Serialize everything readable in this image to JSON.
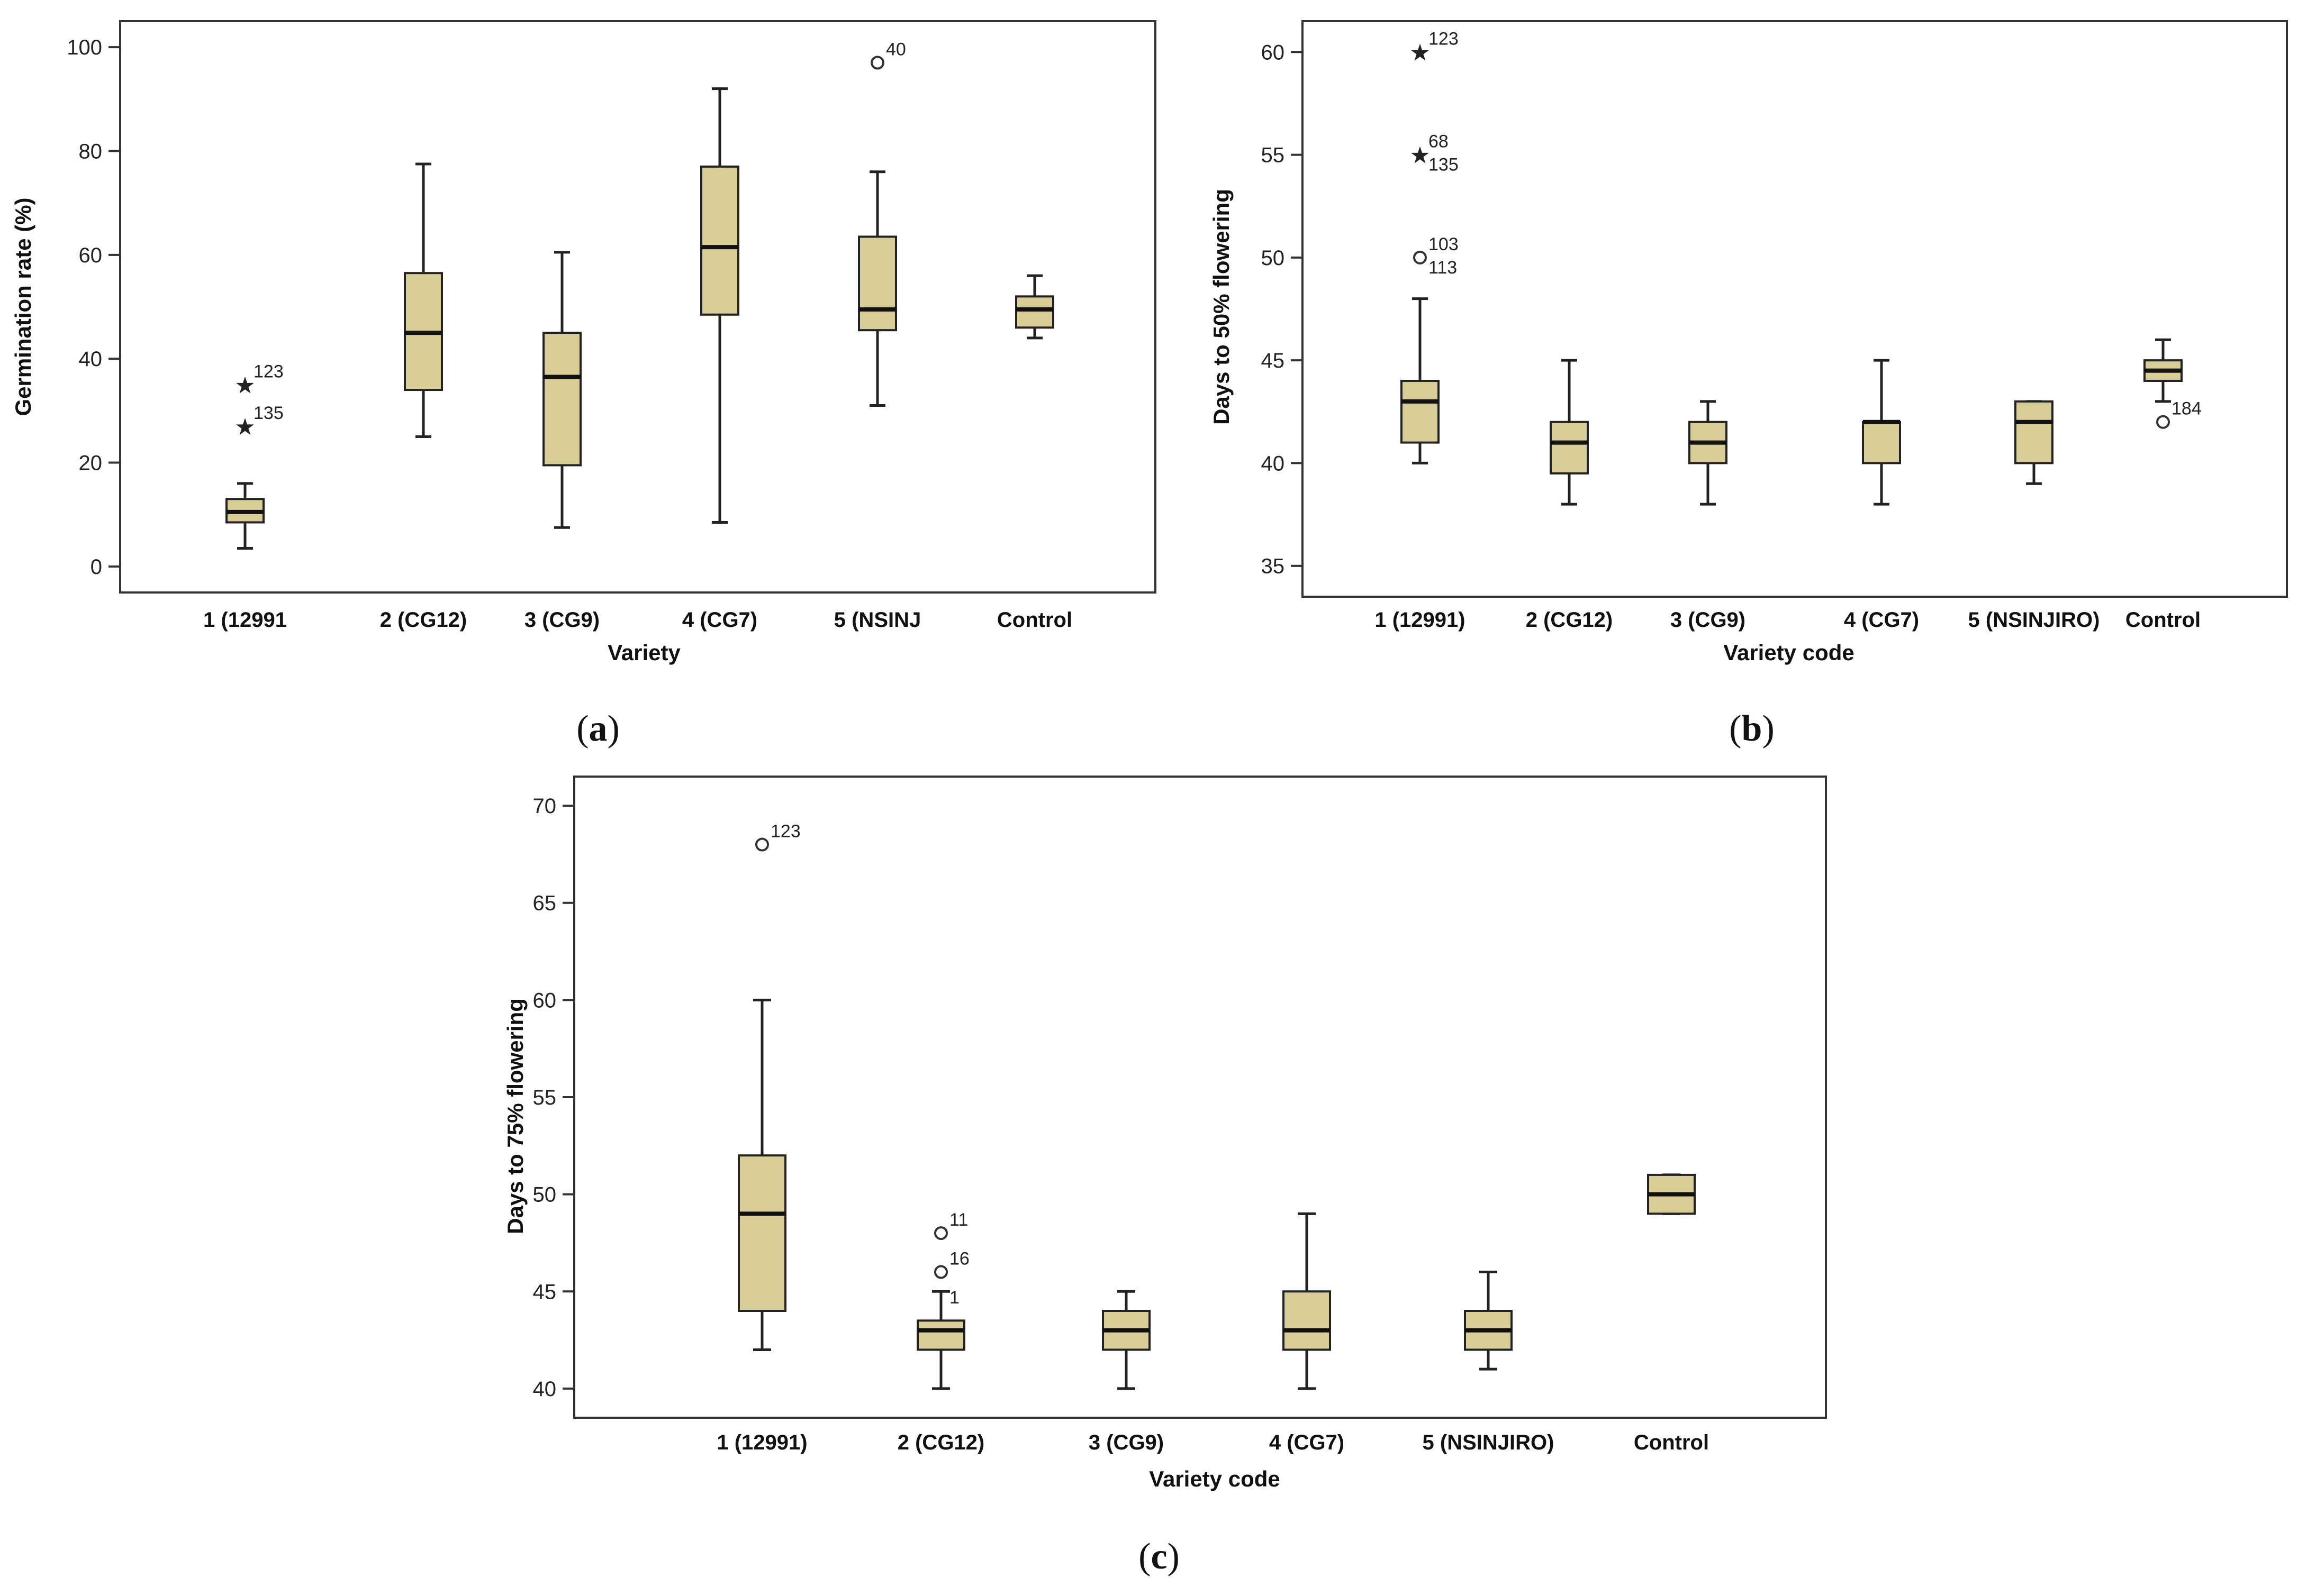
{
  "colors": {
    "box_fill": "#d8cd96",
    "frame": "#333333"
  },
  "chart_data": [
    {
      "panel": "a",
      "type": "boxplot",
      "xlabel": "Variety",
      "ylabel": "Germination rate (%)",
      "ylim": [
        -5,
        105
      ],
      "yticks": [
        0,
        20,
        40,
        60,
        80,
        100
      ],
      "categories": [
        "1 (12991",
        "2 (CG12)",
        "3 (CG9)",
        "4 (CG7)",
        "5 (NSINJ",
        "Control"
      ],
      "boxes": [
        {
          "min": 3.5,
          "q1": 8.5,
          "median": 10.5,
          "q3": 13,
          "max": 16
        },
        {
          "min": 25,
          "q1": 34,
          "median": 45,
          "q3": 56.5,
          "max": 77.5
        },
        {
          "min": 7.5,
          "q1": 19.5,
          "median": 36.5,
          "q3": 45,
          "max": 60.5
        },
        {
          "min": 8.5,
          "q1": 48.5,
          "median": 61.5,
          "q3": 77,
          "max": 92
        },
        {
          "min": 31,
          "q1": 45.5,
          "median": 49.5,
          "q3": 63.5,
          "max": 76
        },
        {
          "min": 44,
          "q1": 46,
          "median": 49.5,
          "q3": 52,
          "max": 56
        }
      ],
      "outliers": [
        {
          "cat": 0,
          "value": 35,
          "marker": "star",
          "label": "123"
        },
        {
          "cat": 0,
          "value": 27,
          "marker": "star",
          "label": "135"
        },
        {
          "cat": 4,
          "value": 97,
          "marker": "circle",
          "label": "40"
        }
      ]
    },
    {
      "panel": "b",
      "type": "boxplot",
      "xlabel": "Variety code",
      "ylabel": "Days to 50% flowering",
      "ylim": [
        33.5,
        61.5
      ],
      "yticks": [
        35,
        40,
        45,
        50,
        55,
        60
      ],
      "categories": [
        "1 (12991)",
        "2 (CG12)",
        "3 (CG9)",
        "4 (CG7)",
        "5 (NSINJIRO)",
        "Control"
      ],
      "boxes": [
        {
          "min": 40,
          "q1": 41,
          "median": 43,
          "q3": 44,
          "max": 48
        },
        {
          "min": 38,
          "q1": 39.5,
          "median": 41,
          "q3": 42,
          "max": 45
        },
        {
          "min": 38,
          "q1": 40,
          "median": 41,
          "q3": 42,
          "max": 43
        },
        {
          "min": 38,
          "q1": 40,
          "median": 42,
          "q3": 42,
          "max": 45
        },
        {
          "min": 39,
          "q1": 40,
          "median": 42,
          "q3": 43,
          "max": 43
        },
        {
          "min": 43,
          "q1": 44,
          "median": 44.5,
          "q3": 45,
          "max": 46
        }
      ],
      "outliers": [
        {
          "cat": 0,
          "value": 60,
          "marker": "star",
          "label": "123"
        },
        {
          "cat": 0,
          "value": 55,
          "marker": "star",
          "label": "68"
        },
        {
          "cat": 0,
          "value": 55,
          "marker": "none",
          "label": "135"
        },
        {
          "cat": 0,
          "value": 50,
          "marker": "circle",
          "label": "103"
        },
        {
          "cat": 0,
          "value": 50,
          "marker": "none",
          "label": "113"
        },
        {
          "cat": 5,
          "value": 42,
          "marker": "circle",
          "label": "184"
        }
      ]
    },
    {
      "panel": "c",
      "type": "boxplot",
      "xlabel": "Variety code",
      "ylabel": "Days to 75% flowering",
      "ylim": [
        38.5,
        71.5
      ],
      "yticks": [
        40,
        45,
        50,
        55,
        60,
        65,
        70
      ],
      "categories": [
        "1 (12991)",
        "2 (CG12)",
        "3 (CG9)",
        "4 (CG7)",
        "5 (NSINJIRO)",
        "Control"
      ],
      "boxes": [
        {
          "min": 42,
          "q1": 44,
          "median": 49,
          "q3": 52,
          "max": 60
        },
        {
          "min": 40,
          "q1": 42,
          "median": 43,
          "q3": 43.5,
          "max": 45
        },
        {
          "min": 40,
          "q1": 42,
          "median": 43,
          "q3": 44,
          "max": 45
        },
        {
          "min": 40,
          "q1": 42,
          "median": 43,
          "q3": 45,
          "max": 49
        },
        {
          "min": 41,
          "q1": 42,
          "median": 43,
          "q3": 44,
          "max": 46
        },
        {
          "min": 49,
          "q1": 49,
          "median": 50,
          "q3": 51,
          "max": 51
        }
      ],
      "outliers": [
        {
          "cat": 0,
          "value": 68,
          "marker": "circle",
          "label": "123"
        },
        {
          "cat": 1,
          "value": 48,
          "marker": "circle",
          "label": "11"
        },
        {
          "cat": 1,
          "value": 46,
          "marker": "circle",
          "label": "16"
        },
        {
          "cat": 1,
          "value": 45.2,
          "marker": "none",
          "label": "1"
        }
      ]
    }
  ],
  "panel_labels": {
    "a": {
      "open": "(",
      "letter": "a",
      "close": ")"
    },
    "b": {
      "open": "(",
      "letter": "b",
      "close": ")"
    },
    "c": {
      "open": "(",
      "letter": "c",
      "close": ")"
    }
  }
}
